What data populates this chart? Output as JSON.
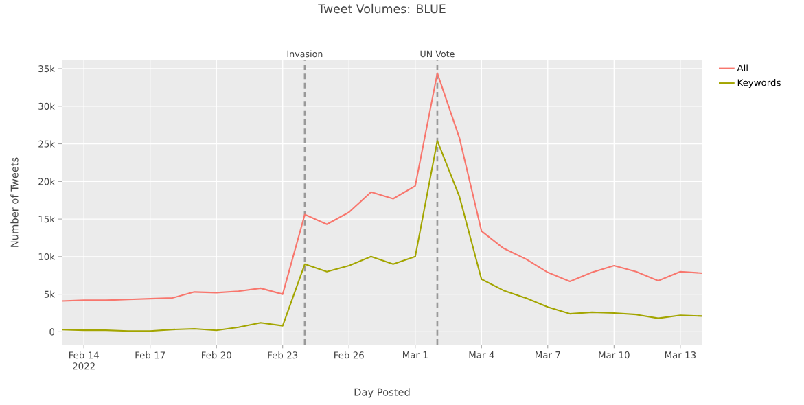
{
  "chart_data": {
    "type": "line",
    "title": "Tweet Volumes: BLUE",
    "xlabel": "Day Posted",
    "ylabel": "Number of Tweets",
    "x": [
      "2022-02-13",
      "2022-02-14",
      "2022-02-15",
      "2022-02-16",
      "2022-02-17",
      "2022-02-18",
      "2022-02-19",
      "2022-02-20",
      "2022-02-21",
      "2022-02-22",
      "2022-02-23",
      "2022-02-24",
      "2022-02-25",
      "2022-02-26",
      "2022-02-27",
      "2022-02-28",
      "2022-03-01",
      "2022-03-02",
      "2022-03-03",
      "2022-03-04",
      "2022-03-05",
      "2022-03-06",
      "2022-03-07",
      "2022-03-08",
      "2022-03-09",
      "2022-03-10",
      "2022-03-11",
      "2022-03-12",
      "2022-03-13",
      "2022-03-14"
    ],
    "series": [
      {
        "name": "All",
        "color": "#f8766d",
        "values": [
          4100,
          4200,
          4200,
          4300,
          4400,
          4500,
          5300,
          5200,
          5400,
          5800,
          5000,
          15600,
          14300,
          15900,
          18600,
          17700,
          19400,
          34400,
          25800,
          13400,
          11100,
          9700,
          7900,
          6700,
          7900,
          8800,
          8000,
          6800,
          8000,
          7800
        ]
      },
      {
        "name": "Keywords",
        "color": "#a3a500",
        "values": [
          300,
          200,
          200,
          100,
          100,
          300,
          400,
          200,
          600,
          1200,
          800,
          9000,
          8000,
          8800,
          10000,
          9000,
          10000,
          25400,
          18000,
          7000,
          5500,
          4500,
          3300,
          2400,
          2600,
          2500,
          2300,
          1800,
          2200,
          2100
        ]
      }
    ],
    "xlim": [
      "2022-02-13",
      "2022-03-14"
    ],
    "xticks": [
      {
        "value": "2022-02-14",
        "label": "Feb 14 2022"
      },
      {
        "value": "2022-02-17",
        "label": "Feb 17"
      },
      {
        "value": "2022-02-20",
        "label": "Feb 20"
      },
      {
        "value": "2022-02-23",
        "label": "Feb 23"
      },
      {
        "value": "2022-02-26",
        "label": "Feb 26"
      },
      {
        "value": "2022-03-01",
        "label": "Mar 1"
      },
      {
        "value": "2022-03-04",
        "label": "Mar 4"
      },
      {
        "value": "2022-03-07",
        "label": "Mar 7"
      },
      {
        "value": "2022-03-10",
        "label": "Mar 10"
      },
      {
        "value": "2022-03-13",
        "label": "Mar 13"
      }
    ],
    "ylim": [
      -1700,
      36100
    ],
    "yticks": [
      0,
      {
        "value": 5000,
        "label": "5k"
      },
      {
        "value": 10000,
        "label": "10k"
      },
      {
        "value": 15000,
        "label": "15k"
      },
      {
        "value": 20000,
        "label": "20k"
      },
      {
        "value": 25000,
        "label": "25k"
      },
      {
        "value": 30000,
        "label": "30k"
      },
      {
        "value": 35000,
        "label": "35k"
      }
    ],
    "ref_lines": [
      {
        "axis": "x",
        "value": "2022-02-24",
        "label": "Invasion",
        "color": "#999999",
        "line_style": "dashed"
      },
      {
        "axis": "x",
        "value": "2022-03-02",
        "label": "UN Vote",
        "color": "#999999",
        "line_style": "dashed"
      }
    ],
    "grid": true,
    "legend": "top right"
  }
}
